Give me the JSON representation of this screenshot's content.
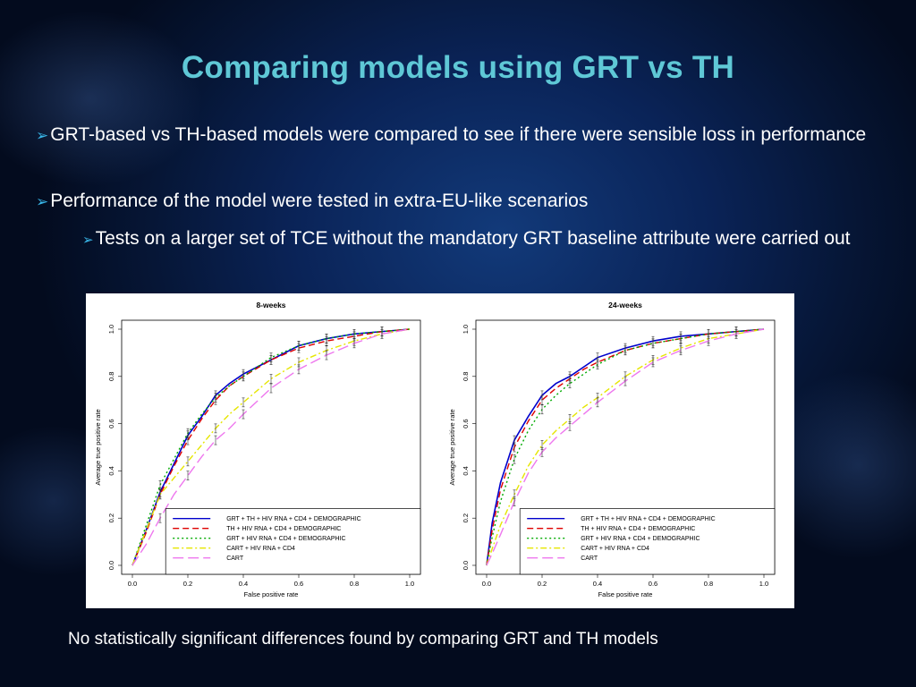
{
  "slide": {
    "title": "Comparing models using GRT vs TH",
    "bullets": [
      "GRT-based vs TH-based models were compared to see if there were sensible loss in performance",
      "Performance of the model were tested in extra-EU-like scenarios"
    ],
    "sub_bullets": [
      "Tests on  a larger set of TCE without the mandatory GRT baseline attribute were carried out"
    ],
    "footer": "No statistically significant differences found by comparing GRT and TH models"
  },
  "icons": {
    "bullet": "arrow-bullet-icon"
  },
  "colors": {
    "title": "#5fc8d6",
    "bullet_arrow": "#38b6e8",
    "text": "#ffffff"
  },
  "chart_data": [
    {
      "type": "line",
      "title": "8-weeks",
      "xlabel": "False positive rate",
      "ylabel": "Average true positive rate",
      "xlim": [
        0,
        1
      ],
      "ylim": [
        0,
        1
      ],
      "xticks": [
        "0.0",
        "0.2",
        "0.4",
        "0.6",
        "0.8",
        "1.0"
      ],
      "yticks": [
        "0.0",
        "0.2",
        "0.4",
        "0.6",
        "0.8",
        "1.0"
      ],
      "legend_position": "bottom-right",
      "error_bars": true,
      "series": [
        {
          "name": "GRT + TH + HIV RNA + CD4 + DEMOGRAPHIC",
          "color": "#0000cc",
          "dash": "solid",
          "x": [
            0,
            0.05,
            0.1,
            0.15,
            0.2,
            0.25,
            0.3,
            0.35,
            0.4,
            0.5,
            0.6,
            0.7,
            0.8,
            0.9,
            1.0
          ],
          "y": [
            0,
            0.15,
            0.31,
            0.43,
            0.55,
            0.63,
            0.72,
            0.77,
            0.81,
            0.87,
            0.93,
            0.96,
            0.98,
            0.99,
            1.0
          ]
        },
        {
          "name": "TH + HIV RNA + CD4 + DEMOGRAPHIC",
          "color": "#dd0000",
          "dash": "dashed",
          "x": [
            0,
            0.05,
            0.1,
            0.15,
            0.2,
            0.25,
            0.3,
            0.35,
            0.4,
            0.5,
            0.6,
            0.7,
            0.8,
            0.9,
            1.0
          ],
          "y": [
            0,
            0.14,
            0.3,
            0.42,
            0.53,
            0.62,
            0.7,
            0.76,
            0.8,
            0.87,
            0.92,
            0.95,
            0.97,
            0.99,
            1.0
          ]
        },
        {
          "name": "GRT + HIV RNA + CD4 + DEMOGRAPHIC",
          "color": "#00aa00",
          "dash": "dotted",
          "x": [
            0,
            0.05,
            0.1,
            0.15,
            0.2,
            0.25,
            0.3,
            0.35,
            0.4,
            0.5,
            0.6,
            0.7,
            0.8,
            0.9,
            1.0
          ],
          "y": [
            0,
            0.17,
            0.34,
            0.45,
            0.56,
            0.64,
            0.71,
            0.76,
            0.8,
            0.88,
            0.93,
            0.96,
            0.98,
            0.99,
            1.0
          ]
        },
        {
          "name": "CART + HIV RNA + CD4",
          "color": "#e6e600",
          "dash": "dashdot",
          "x": [
            0,
            0.05,
            0.1,
            0.15,
            0.2,
            0.25,
            0.3,
            0.35,
            0.4,
            0.5,
            0.6,
            0.7,
            0.8,
            0.9,
            1.0
          ],
          "y": [
            0,
            0.15,
            0.3,
            0.37,
            0.44,
            0.51,
            0.58,
            0.64,
            0.69,
            0.79,
            0.86,
            0.91,
            0.95,
            0.98,
            1.0
          ]
        },
        {
          "name": "CART",
          "color": "#ee77ee",
          "dash": "longdash",
          "x": [
            0,
            0.05,
            0.1,
            0.15,
            0.2,
            0.25,
            0.3,
            0.35,
            0.4,
            0.5,
            0.6,
            0.7,
            0.8,
            0.9,
            1.0
          ],
          "y": [
            0,
            0.09,
            0.2,
            0.3,
            0.38,
            0.46,
            0.53,
            0.58,
            0.64,
            0.75,
            0.83,
            0.89,
            0.94,
            0.98,
            1.0
          ]
        }
      ]
    },
    {
      "type": "line",
      "title": "24-weeks",
      "xlabel": "False positive rate",
      "ylabel": "Average true positive rate",
      "xlim": [
        0,
        1
      ],
      "ylim": [
        0,
        1
      ],
      "xticks": [
        "0.0",
        "0.2",
        "0.4",
        "0.6",
        "0.8",
        "1.0"
      ],
      "yticks": [
        "0.0",
        "0.2",
        "0.4",
        "0.6",
        "0.8",
        "1.0"
      ],
      "legend_position": "bottom-right",
      "error_bars": true,
      "series": [
        {
          "name": "GRT + TH + HIV RNA + CD4 + DEMOGRAPHIC",
          "color": "#0000cc",
          "dash": "solid",
          "x": [
            0,
            0.02,
            0.05,
            0.1,
            0.15,
            0.2,
            0.25,
            0.3,
            0.35,
            0.4,
            0.5,
            0.6,
            0.7,
            0.8,
            0.9,
            1.0
          ],
          "y": [
            0,
            0.18,
            0.35,
            0.53,
            0.63,
            0.72,
            0.77,
            0.8,
            0.84,
            0.88,
            0.92,
            0.95,
            0.97,
            0.98,
            0.99,
            1.0
          ]
        },
        {
          "name": "TH + HIV RNA + CD4 + DEMOGRAPHIC",
          "color": "#dd0000",
          "dash": "dashed",
          "x": [
            0,
            0.02,
            0.05,
            0.1,
            0.15,
            0.2,
            0.25,
            0.3,
            0.35,
            0.4,
            0.5,
            0.6,
            0.7,
            0.8,
            0.9,
            1.0
          ],
          "y": [
            0,
            0.15,
            0.32,
            0.5,
            0.61,
            0.7,
            0.75,
            0.79,
            0.83,
            0.86,
            0.91,
            0.94,
            0.96,
            0.98,
            0.99,
            1.0
          ]
        },
        {
          "name": "GRT + HIV RNA + CD4 + DEMOGRAPHIC",
          "color": "#00aa00",
          "dash": "dotted",
          "x": [
            0,
            0.02,
            0.05,
            0.1,
            0.15,
            0.2,
            0.25,
            0.3,
            0.35,
            0.4,
            0.5,
            0.6,
            0.7,
            0.8,
            0.9,
            1.0
          ],
          "y": [
            0,
            0.12,
            0.27,
            0.45,
            0.57,
            0.66,
            0.72,
            0.77,
            0.81,
            0.85,
            0.91,
            0.94,
            0.96,
            0.98,
            0.99,
            1.0
          ]
        },
        {
          "name": "CART + HIV RNA + CD4",
          "color": "#e6e600",
          "dash": "dashdot",
          "x": [
            0,
            0.02,
            0.05,
            0.1,
            0.15,
            0.2,
            0.25,
            0.3,
            0.35,
            0.4,
            0.5,
            0.6,
            0.7,
            0.8,
            0.9,
            1.0
          ],
          "y": [
            0,
            0.07,
            0.17,
            0.3,
            0.42,
            0.51,
            0.57,
            0.62,
            0.67,
            0.71,
            0.8,
            0.87,
            0.92,
            0.96,
            0.98,
            1.0
          ]
        },
        {
          "name": "CART",
          "color": "#ee77ee",
          "dash": "longdash",
          "x": [
            0,
            0.02,
            0.05,
            0.1,
            0.15,
            0.2,
            0.25,
            0.3,
            0.35,
            0.4,
            0.5,
            0.6,
            0.7,
            0.8,
            0.9,
            1.0
          ],
          "y": [
            0,
            0.05,
            0.13,
            0.27,
            0.39,
            0.48,
            0.54,
            0.59,
            0.64,
            0.69,
            0.78,
            0.86,
            0.91,
            0.95,
            0.98,
            1.0
          ]
        }
      ]
    }
  ]
}
